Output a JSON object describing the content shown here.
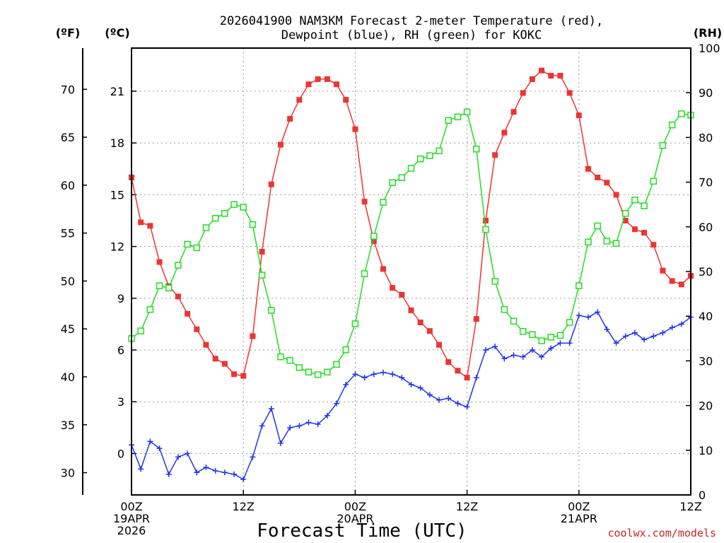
{
  "chart_data": {
    "type": "line",
    "title_line1": "2026041900 NAM3KM Forecast 2-meter Temperature (red),",
    "title_line2": "Dewpoint (blue), RH (green) for KOKC",
    "xlabel": "Forecast Time (UTC)",
    "credit": "coolwx.com/models",
    "units": {
      "fahrenheit": "(ºF)",
      "celsius": "(ºC)",
      "rh": "(RH)"
    },
    "x_hours": [
      0,
      1,
      2,
      3,
      4,
      5,
      6,
      7,
      8,
      9,
      10,
      11,
      12,
      13,
      14,
      15,
      16,
      17,
      18,
      19,
      20,
      21,
      22,
      23,
      24,
      25,
      26,
      27,
      28,
      29,
      30,
      31,
      32,
      33,
      34,
      35,
      36,
      37,
      38,
      39,
      40,
      41,
      42,
      43,
      44,
      45,
      46,
      47,
      48,
      49,
      50,
      51,
      52,
      53,
      54,
      55,
      56,
      57,
      58,
      59,
      60
    ],
    "xlim": [
      0,
      60
    ],
    "x_ticks": [
      {
        "hour": 0,
        "lines": [
          "00Z",
          "19APR",
          "2026"
        ]
      },
      {
        "hour": 12,
        "lines": [
          "12Z"
        ]
      },
      {
        "hour": 24,
        "lines": [
          "00Z",
          "20APR"
        ]
      },
      {
        "hour": 36,
        "lines": [
          "12Z"
        ]
      },
      {
        "hour": 48,
        "lines": [
          "00Z",
          "21APR"
        ]
      },
      {
        "hour": 60,
        "lines": [
          "12Z"
        ]
      }
    ],
    "celsius_axis": {
      "ylim": [
        -2.4,
        23.5
      ],
      "ticks": [
        0,
        3,
        6,
        9,
        12,
        15,
        18,
        21
      ]
    },
    "fahrenheit_axis": {
      "ticks": [
        30,
        35,
        40,
        45,
        50,
        55,
        60,
        65,
        70
      ]
    },
    "rh_axis": {
      "ylim": [
        0,
        100
      ],
      "ticks": [
        0,
        10,
        20,
        30,
        40,
        50,
        60,
        70,
        80,
        90,
        100
      ]
    },
    "series": [
      {
        "name": "Temperature",
        "axis": "celsius",
        "color": "#ee3333",
        "marker": "filled-square",
        "values": [
          16.0,
          13.4,
          13.2,
          11.1,
          9.7,
          9.1,
          8.1,
          7.2,
          6.3,
          5.5,
          5.2,
          4.6,
          4.5,
          6.8,
          11.7,
          15.6,
          17.9,
          19.4,
          20.5,
          21.4,
          21.7,
          21.7,
          21.4,
          20.5,
          18.8,
          14.6,
          12.3,
          10.7,
          9.6,
          9.2,
          8.3,
          7.6,
          7.1,
          6.3,
          5.3,
          4.8,
          4.4,
          7.8,
          13.5,
          17.3,
          18.6,
          19.8,
          20.9,
          21.7,
          22.2,
          21.9,
          21.9,
          20.9,
          19.6,
          16.5,
          16.0,
          15.7,
          15.0,
          13.5,
          13.0,
          12.8,
          12.1,
          10.6,
          10.0,
          9.8,
          10.3
        ]
      },
      {
        "name": "Dewpoint",
        "axis": "celsius",
        "color": "#2233ee",
        "marker": "plus",
        "values": [
          0.5,
          -0.9,
          0.7,
          0.3,
          -1.2,
          -0.2,
          0.0,
          -1.1,
          -0.8,
          -1.0,
          -1.1,
          -1.2,
          -1.5,
          -0.2,
          1.6,
          2.6,
          0.6,
          1.5,
          1.6,
          1.8,
          1.7,
          2.2,
          2.9,
          4.0,
          4.6,
          4.4,
          4.6,
          4.7,
          4.6,
          4.4,
          4.0,
          3.8,
          3.4,
          3.1,
          3.2,
          2.9,
          2.7,
          4.4,
          6.0,
          6.2,
          5.5,
          5.7,
          5.6,
          6.0,
          5.6,
          6.1,
          6.4,
          6.4,
          8.0,
          7.9,
          8.2,
          7.2,
          6.4,
          6.8,
          7.0,
          6.6,
          6.8,
          7.0,
          7.3,
          7.5,
          7.9
        ]
      },
      {
        "name": "RH",
        "axis": "rh",
        "color": "#22dd22",
        "marker": "open-square",
        "values": [
          35.0,
          36.7,
          41.5,
          46.8,
          46.3,
          51.4,
          56.1,
          55.3,
          59.8,
          61.9,
          63.0,
          65.0,
          64.4,
          60.5,
          49.2,
          41.3,
          30.9,
          30.1,
          28.5,
          27.5,
          26.9,
          27.5,
          29.2,
          32.5,
          38.3,
          49.5,
          57.9,
          65.5,
          69.9,
          71.0,
          73.1,
          75.2,
          75.9,
          77.0,
          83.8,
          84.6,
          85.7,
          77.4,
          59.4,
          47.8,
          41.5,
          38.9,
          36.6,
          35.9,
          34.5,
          35.3,
          35.7,
          38.6,
          46.8,
          56.6,
          60.2,
          56.8,
          56.3,
          63.0,
          66.0,
          64.7,
          70.2,
          78.2,
          82.8,
          85.3,
          85.0
        ]
      }
    ]
  }
}
